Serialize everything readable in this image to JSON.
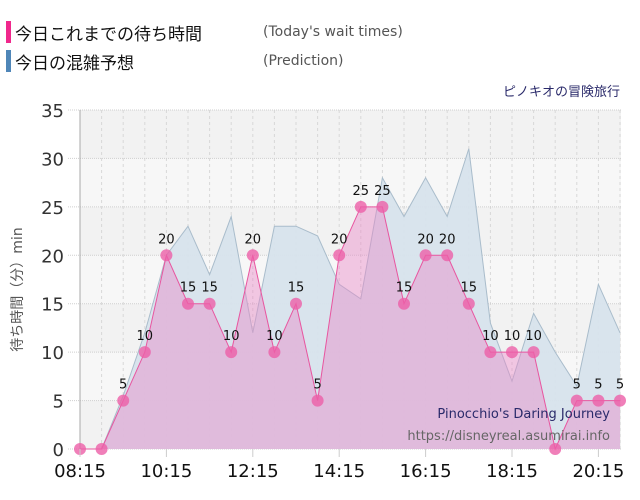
{
  "legend": {
    "items": [
      {
        "label_jp": "今日これまでの待ち時間",
        "label_en": "(Today's wait times)",
        "color": "#f0288c"
      },
      {
        "label_jp": "今日の混雑予想",
        "label_en": "(Prediction)",
        "color": "#4f86b8"
      }
    ]
  },
  "ride": {
    "name_jp": "ピノキオの冒険旅行",
    "name_en": "Pinocchio's Daring Journey",
    "url": "https://disneyreal.asumirai.info"
  },
  "axes": {
    "ylabel": "待ち時間（分）min",
    "yticks": [
      "0",
      "5",
      "10",
      "15",
      "20",
      "25",
      "30",
      "35"
    ],
    "xticks": [
      "08:15",
      "10:15",
      "12:15",
      "14:15",
      "16:15",
      "18:15",
      "20:15"
    ]
  },
  "colors": {
    "actual_fill": "#d9aed6",
    "actual_line": "#e8559f",
    "actual_point": "#ec5fa8",
    "prediction_fill": "#d7e3ec",
    "prediction_line": "#a9bccb",
    "plot_bg": "#f4f4f4"
  },
  "chart_data": {
    "type": "area",
    "title": "ピノキオの冒険旅行 (Pinocchio's Daring Journey)",
    "xlabel": "",
    "ylabel": "待ち時間（分）min",
    "ylim": [
      0,
      35
    ],
    "grid": true,
    "legend_position": "top-left",
    "x": [
      "08:15",
      "08:45",
      "09:15",
      "09:45",
      "10:15",
      "10:45",
      "11:15",
      "11:45",
      "12:15",
      "12:45",
      "13:15",
      "13:45",
      "14:15",
      "14:45",
      "15:15",
      "15:45",
      "16:15",
      "16:45",
      "17:15",
      "17:45",
      "18:15",
      "18:45",
      "19:15",
      "19:45",
      "20:15",
      "20:45"
    ],
    "series": [
      {
        "name": "今日これまでの待ち時間 (Today's wait times)",
        "values": [
          0,
          0,
          5,
          10,
          20,
          15,
          15,
          10,
          20,
          10,
          15,
          5,
          20,
          25,
          25,
          15,
          20,
          20,
          15,
          10,
          10,
          10,
          0,
          5,
          5,
          5
        ]
      },
      {
        "name": "今日の混雑予想 (Prediction)",
        "values": [
          0,
          0,
          5.5,
          12,
          20,
          23,
          18,
          24,
          12,
          23,
          23,
          22,
          17,
          15.5,
          28,
          24,
          28,
          24,
          31,
          13,
          7,
          14,
          10,
          6.5,
          17,
          12
        ]
      }
    ]
  }
}
